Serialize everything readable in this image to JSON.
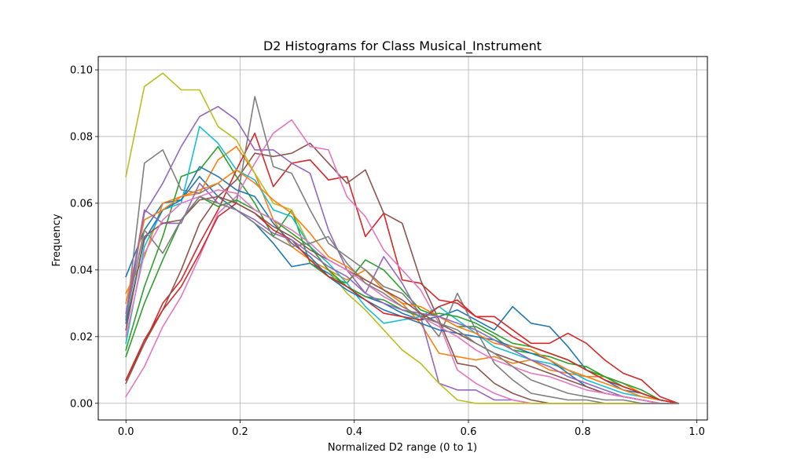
{
  "chart_data": {
    "type": "line",
    "title": "D2 Histograms for Class Musical_Instrument",
    "xlabel": "Normalized D2 range (0 to 1)",
    "ylabel": "Frequency",
    "xlim": [
      -0.0485,
      1.0185
    ],
    "ylim": [
      -0.005,
      0.104
    ],
    "xticks": [
      0.0,
      0.2,
      0.4,
      0.6,
      0.8,
      1.0
    ],
    "xtick_labels": [
      "0.0",
      "0.2",
      "0.4",
      "0.6",
      "0.8",
      "1.0"
    ],
    "yticks": [
      0.0,
      0.02,
      0.04,
      0.06,
      0.08,
      0.1
    ],
    "ytick_labels": [
      "0.00",
      "0.02",
      "0.04",
      "0.06",
      "0.08",
      "0.10"
    ],
    "grid": true,
    "x": [
      0.0,
      0.0323,
      0.0645,
      0.0968,
      0.129,
      0.1613,
      0.1935,
      0.2258,
      0.2581,
      0.2903,
      0.3226,
      0.3548,
      0.3871,
      0.4194,
      0.4516,
      0.4839,
      0.5161,
      0.5484,
      0.5806,
      0.6129,
      0.6452,
      0.6774,
      0.7097,
      0.7419,
      0.7742,
      0.8065,
      0.8387,
      0.871,
      0.9032,
      0.9355,
      0.9677
    ],
    "series": [
      {
        "color": "#1f77b4",
        "values": [
          0.038,
          0.052,
          0.06,
          0.061,
          0.068,
          0.062,
          0.058,
          0.054,
          0.048,
          0.041,
          0.042,
          0.039,
          0.035,
          0.032,
          0.03,
          0.027,
          0.025,
          0.026,
          0.028,
          0.025,
          0.022,
          0.029,
          0.024,
          0.023,
          0.017,
          0.01,
          0.007,
          0.004,
          0.003,
          0.001,
          0.0
        ]
      },
      {
        "color": "#ff7f0e",
        "values": [
          0.033,
          0.044,
          0.06,
          0.062,
          0.063,
          0.073,
          0.077,
          0.069,
          0.055,
          0.047,
          0.043,
          0.04,
          0.037,
          0.04,
          0.034,
          0.03,
          0.024,
          0.015,
          0.014,
          0.013,
          0.014,
          0.012,
          0.013,
          0.01,
          0.009,
          0.008,
          0.008,
          0.006,
          0.003,
          0.001,
          0.0
        ]
      },
      {
        "color": "#2ca02c",
        "values": [
          0.016,
          0.035,
          0.05,
          0.068,
          0.07,
          0.077,
          0.068,
          0.06,
          0.05,
          0.058,
          0.042,
          0.038,
          0.036,
          0.043,
          0.04,
          0.034,
          0.028,
          0.026,
          0.023,
          0.023,
          0.02,
          0.016,
          0.015,
          0.014,
          0.012,
          0.011,
          0.008,
          0.006,
          0.004,
          0.001,
          0.0
        ]
      },
      {
        "color": "#d62728",
        "values": [
          0.007,
          0.018,
          0.03,
          0.037,
          0.048,
          0.058,
          0.07,
          0.081,
          0.065,
          0.072,
          0.073,
          0.067,
          0.068,
          0.05,
          0.057,
          0.037,
          0.036,
          0.031,
          0.03,
          0.026,
          0.026,
          0.022,
          0.018,
          0.018,
          0.021,
          0.018,
          0.013,
          0.009,
          0.007,
          0.002,
          0.0
        ]
      },
      {
        "color": "#9467bd",
        "values": [
          0.025,
          0.057,
          0.066,
          0.077,
          0.086,
          0.089,
          0.085,
          0.076,
          0.076,
          0.072,
          0.069,
          0.052,
          0.04,
          0.033,
          0.044,
          0.036,
          0.026,
          0.006,
          0.004,
          0.004,
          0.001,
          0.001,
          0.0,
          0.0,
          0.0,
          0.0,
          0.0,
          0.0,
          0.0,
          0.0,
          0.0
        ]
      },
      {
        "color": "#8c564b",
        "values": [
          0.006,
          0.018,
          0.028,
          0.04,
          0.054,
          0.062,
          0.067,
          0.075,
          0.074,
          0.075,
          0.078,
          0.072,
          0.066,
          0.07,
          0.057,
          0.054,
          0.037,
          0.025,
          0.012,
          0.011,
          0.006,
          0.003,
          0.001,
          0.0,
          0.0,
          0.0,
          0.0,
          0.0,
          0.0,
          0.0,
          0.0
        ]
      },
      {
        "color": "#e377c2",
        "values": [
          0.002,
          0.011,
          0.023,
          0.032,
          0.044,
          0.057,
          0.062,
          0.072,
          0.081,
          0.085,
          0.077,
          0.076,
          0.062,
          0.056,
          0.046,
          0.04,
          0.034,
          0.024,
          0.01,
          0.006,
          0.003,
          0.001,
          0.0,
          0.0,
          0.0,
          0.0,
          0.0,
          0.0,
          0.0,
          0.0,
          0.0
        ]
      },
      {
        "color": "#7f7f7f",
        "values": [
          0.025,
          0.072,
          0.076,
          0.064,
          0.063,
          0.066,
          0.06,
          0.092,
          0.071,
          0.069,
          0.058,
          0.048,
          0.044,
          0.04,
          0.035,
          0.033,
          0.027,
          0.02,
          0.033,
          0.022,
          0.012,
          0.007,
          0.003,
          0.002,
          0.001,
          0.001,
          0.0,
          0.0,
          0.0,
          0.0,
          0.0
        ]
      },
      {
        "color": "#bcbd22",
        "values": [
          0.068,
          0.095,
          0.099,
          0.094,
          0.094,
          0.083,
          0.079,
          0.069,
          0.06,
          0.058,
          0.047,
          0.04,
          0.033,
          0.028,
          0.022,
          0.016,
          0.012,
          0.006,
          0.001,
          0.0,
          0.0,
          0.0,
          0.0,
          0.0,
          0.0,
          0.0,
          0.0,
          0.0,
          0.0,
          0.0,
          0.0
        ]
      },
      {
        "color": "#17becf",
        "values": [
          0.018,
          0.047,
          0.058,
          0.06,
          0.083,
          0.078,
          0.07,
          0.067,
          0.058,
          0.056,
          0.047,
          0.042,
          0.036,
          0.029,
          0.024,
          0.025,
          0.026,
          0.029,
          0.025,
          0.021,
          0.017,
          0.015,
          0.013,
          0.012,
          0.01,
          0.007,
          0.005,
          0.003,
          0.002,
          0.001,
          0.0
        ]
      },
      {
        "color": "#1f77b4",
        "values": [
          0.024,
          0.049,
          0.058,
          0.061,
          0.071,
          0.068,
          0.064,
          0.062,
          0.054,
          0.048,
          0.044,
          0.038,
          0.034,
          0.031,
          0.028,
          0.026,
          0.024,
          0.022,
          0.021,
          0.02,
          0.019,
          0.017,
          0.015,
          0.013,
          0.009,
          0.005,
          0.003,
          0.002,
          0.001,
          0.0,
          0.0
        ]
      },
      {
        "color": "#ff7f0e",
        "values": [
          0.03,
          0.055,
          0.058,
          0.062,
          0.064,
          0.066,
          0.07,
          0.066,
          0.061,
          0.057,
          0.051,
          0.044,
          0.041,
          0.037,
          0.034,
          0.03,
          0.029,
          0.026,
          0.023,
          0.021,
          0.018,
          0.017,
          0.016,
          0.013,
          0.01,
          0.008,
          0.006,
          0.004,
          0.002,
          0.001,
          0.0
        ]
      },
      {
        "color": "#2ca02c",
        "values": [
          0.014,
          0.03,
          0.043,
          0.055,
          0.062,
          0.059,
          0.061,
          0.058,
          0.055,
          0.051,
          0.047,
          0.04,
          0.035,
          0.032,
          0.031,
          0.028,
          0.026,
          0.027,
          0.026,
          0.024,
          0.021,
          0.018,
          0.017,
          0.015,
          0.013,
          0.01,
          0.008,
          0.005,
          0.003,
          0.001,
          0.0
        ]
      },
      {
        "color": "#d62728",
        "values": [
          0.007,
          0.019,
          0.028,
          0.035,
          0.045,
          0.056,
          0.06,
          0.057,
          0.052,
          0.049,
          0.043,
          0.038,
          0.035,
          0.031,
          0.027,
          0.026,
          0.025,
          0.029,
          0.031,
          0.026,
          0.024,
          0.02,
          0.017,
          0.015,
          0.013,
          0.01,
          0.007,
          0.005,
          0.003,
          0.001,
          0.0
        ]
      },
      {
        "color": "#9467bd",
        "values": [
          0.027,
          0.058,
          0.054,
          0.054,
          0.066,
          0.06,
          0.058,
          0.055,
          0.051,
          0.049,
          0.045,
          0.041,
          0.038,
          0.033,
          0.03,
          0.028,
          0.027,
          0.026,
          0.024,
          0.022,
          0.019,
          0.016,
          0.013,
          0.011,
          0.008,
          0.006,
          0.004,
          0.002,
          0.001,
          0.0,
          0.0
        ]
      },
      {
        "color": "#8c564b",
        "values": [
          0.022,
          0.05,
          0.054,
          0.055,
          0.061,
          0.062,
          0.06,
          0.057,
          0.053,
          0.05,
          0.046,
          0.043,
          0.04,
          0.037,
          0.034,
          0.031,
          0.027,
          0.024,
          0.021,
          0.018,
          0.015,
          0.013,
          0.011,
          0.009,
          0.007,
          0.005,
          0.003,
          0.002,
          0.001,
          0.0,
          0.0
        ]
      },
      {
        "color": "#e377c2",
        "values": [
          0.02,
          0.045,
          0.055,
          0.06,
          0.062,
          0.064,
          0.063,
          0.058,
          0.055,
          0.052,
          0.048,
          0.043,
          0.04,
          0.036,
          0.032,
          0.029,
          0.026,
          0.023,
          0.02,
          0.016,
          0.013,
          0.011,
          0.009,
          0.008,
          0.006,
          0.004,
          0.003,
          0.002,
          0.001,
          0.0,
          0.0
        ]
      },
      {
        "color": "#7f7f7f",
        "values": [
          0.026,
          0.052,
          0.045,
          0.055,
          0.062,
          0.06,
          0.058,
          0.054,
          0.05,
          0.047,
          0.048,
          0.05,
          0.042,
          0.036,
          0.033,
          0.029,
          0.026,
          0.024,
          0.022,
          0.018,
          0.015,
          0.011,
          0.007,
          0.005,
          0.003,
          0.002,
          0.001,
          0.001,
          0.0,
          0.0,
          0.0
        ]
      }
    ]
  }
}
